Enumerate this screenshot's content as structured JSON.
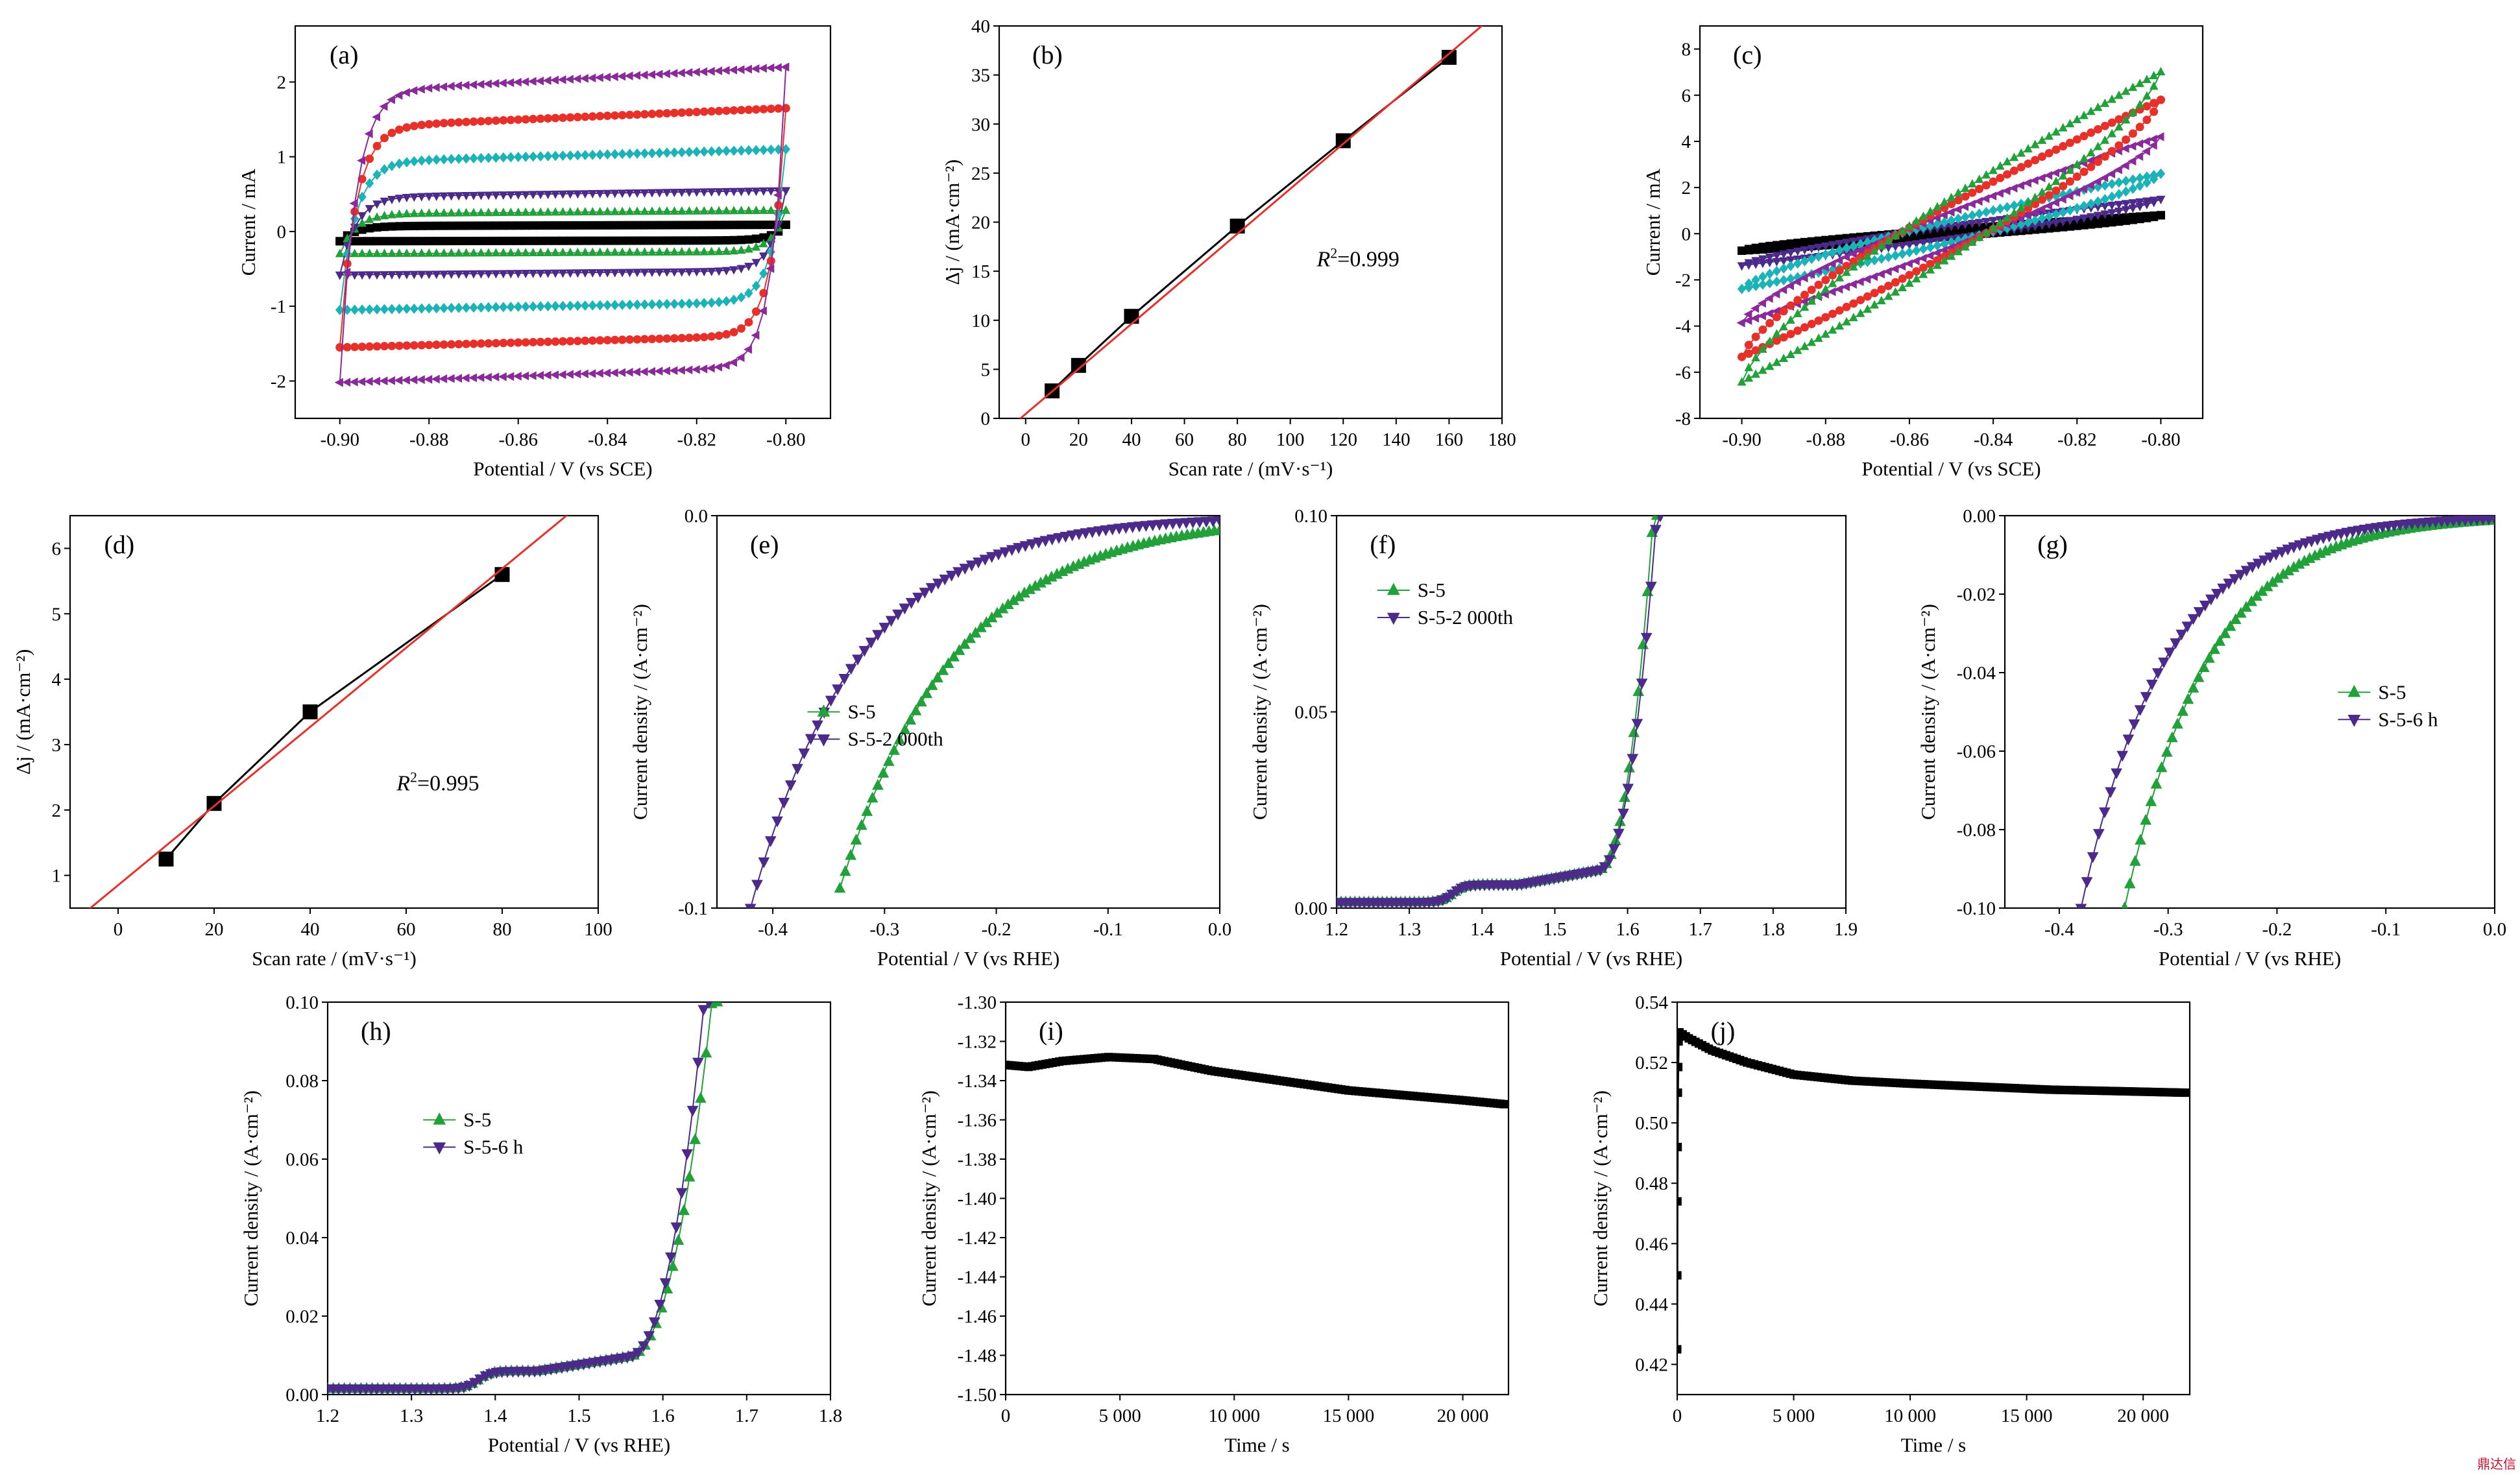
{
  "watermark": "鼎达信",
  "chart_data": [
    {
      "id": "a",
      "label": "(a)",
      "type": "line",
      "xlabel": "Potential / V (vs SCE)",
      "ylabel": "Current / mA",
      "xlim": [
        -0.91,
        -0.79
      ],
      "ylim": [
        -2.5,
        2.75
      ],
      "xticks": [
        -0.9,
        -0.88,
        -0.86,
        -0.84,
        -0.82,
        -0.8
      ],
      "xtick_labels": [
        "-0.90",
        "-0.88",
        "-0.86",
        "-0.84",
        "-0.82",
        "-0.80"
      ],
      "yticks": [
        -2,
        -1,
        0,
        1,
        2
      ],
      "ytick_labels": [
        "-2",
        "-1",
        "0",
        "1",
        "2"
      ],
      "series": [
        {
          "color": "#000000",
          "marker": "square",
          "shape": "cv",
          "x_range": [
            -0.9,
            -0.8
          ],
          "upper": 0.09,
          "lower": -0.13
        },
        {
          "color": "#22a13a",
          "marker": "triangle-up",
          "shape": "cv",
          "x_range": [
            -0.9,
            -0.8
          ],
          "upper": 0.28,
          "lower": -0.3
        },
        {
          "color": "#4b2a8a",
          "marker": "triangle-down",
          "shape": "cv",
          "x_range": [
            -0.9,
            -0.8
          ],
          "upper": 0.55,
          "lower": -0.58
        },
        {
          "color": "#1cb3b8",
          "marker": "diamond",
          "shape": "cv",
          "x_range": [
            -0.9,
            -0.8
          ],
          "upper": 1.1,
          "lower": -1.05
        },
        {
          "color": "#e8302a",
          "marker": "circle",
          "shape": "cv",
          "x_range": [
            -0.9,
            -0.8
          ],
          "upper": 1.65,
          "lower": -1.55
        },
        {
          "color": "#8a2a9a",
          "marker": "triangle-left",
          "shape": "cv",
          "x_range": [
            -0.9,
            -0.8
          ],
          "upper": 2.2,
          "lower": -2.02
        }
      ]
    },
    {
      "id": "b",
      "label": "(b)",
      "type": "scatter",
      "xlabel": "Scan rate / (mV·s⁻¹)",
      "ylabel": "Δj / (mA·cm⁻²)",
      "xlim": [
        -10,
        180
      ],
      "ylim": [
        0,
        40
      ],
      "xticks": [
        0,
        20,
        40,
        60,
        80,
        100,
        120,
        140,
        160,
        180
      ],
      "xtick_labels": [
        "0",
        "20",
        "40",
        "60",
        "80",
        "100",
        "120",
        "140",
        "160",
        "180"
      ],
      "yticks": [
        0,
        5,
        10,
        15,
        20,
        25,
        30,
        35,
        40
      ],
      "ytick_labels": [
        "0",
        "5",
        "10",
        "15",
        "20",
        "25",
        "30",
        "35",
        "40"
      ],
      "annotation": {
        "r": "R",
        "sup": "2",
        "rest": "=0.999",
        "x": 110,
        "y": 15.5
      },
      "series": [
        {
          "color": "#000000",
          "marker": "square",
          "connect": true,
          "x": [
            10,
            20,
            40,
            80,
            120,
            160
          ],
          "y": [
            2.8,
            5.4,
            10.4,
            19.6,
            28.3,
            36.8
          ]
        },
        {
          "color": "#e8302a",
          "type": "fit",
          "slope": 0.2295,
          "intercept": 0.45
        }
      ]
    },
    {
      "id": "c",
      "label": "(c)",
      "type": "line",
      "xlabel": "Potential / V (vs SCE)",
      "ylabel": "Current / mA",
      "xlim": [
        -0.91,
        -0.79
      ],
      "ylim": [
        -8,
        9
      ],
      "xticks": [
        -0.9,
        -0.88,
        -0.86,
        -0.84,
        -0.82,
        -0.8
      ],
      "xtick_labels": [
        "-0.90",
        "-0.88",
        "-0.86",
        "-0.84",
        "-0.82",
        "-0.80"
      ],
      "yticks": [
        -8,
        -6,
        -4,
        -2,
        0,
        2,
        4,
        6,
        8
      ],
      "ytick_labels": [
        "-8",
        "-6",
        "-4",
        "-2",
        "0",
        "2",
        "4",
        "6",
        "8"
      ],
      "series": [
        {
          "color": "#000000",
          "marker": "square",
          "shape": "cvres",
          "x_range": [
            -0.9,
            -0.8
          ],
          "amp": 0.8
        },
        {
          "color": "#4b2a8a",
          "marker": "triangle-down",
          "shape": "cvres",
          "x_range": [
            -0.9,
            -0.8
          ],
          "amp": 1.5
        },
        {
          "color": "#1cb3b8",
          "marker": "diamond",
          "shape": "cvres",
          "x_range": [
            -0.9,
            -0.8
          ],
          "amp": 2.6
        },
        {
          "color": "#8a2a9a",
          "marker": "triangle-left",
          "shape": "cvres",
          "x_range": [
            -0.9,
            -0.8
          ],
          "amp": 4.2
        },
        {
          "color": "#e8302a",
          "marker": "circle",
          "shape": "cvres",
          "x_range": [
            -0.9,
            -0.8
          ],
          "amp": 5.8
        },
        {
          "color": "#22a13a",
          "marker": "triangle-up",
          "shape": "cvres",
          "x_range": [
            -0.9,
            -0.8
          ],
          "amp": 7.0
        }
      ]
    },
    {
      "id": "d",
      "label": "(d)",
      "type": "scatter",
      "xlabel": "Scan rate / (mV·s⁻¹)",
      "ylabel": "Δj / (mA·cm⁻²)",
      "xlim": [
        -10,
        100
      ],
      "ylim": [
        0.5,
        6.5
      ],
      "xticks": [
        0,
        20,
        40,
        60,
        80,
        100
      ],
      "xtick_labels": [
        "0",
        "20",
        "40",
        "60",
        "80",
        "100"
      ],
      "yticks": [
        1,
        2,
        3,
        4,
        5,
        6
      ],
      "ytick_labels": [
        "1",
        "2",
        "3",
        "4",
        "5",
        "6"
      ],
      "annotation": {
        "r": "R",
        "sup": "2",
        "rest": "=0.995",
        "x": 58,
        "y": 2.3
      },
      "series": [
        {
          "color": "#000000",
          "marker": "square",
          "connect": true,
          "x": [
            10,
            20,
            40,
            80
          ],
          "y": [
            1.25,
            2.1,
            3.5,
            5.6
          ]
        },
        {
          "color": "#e8302a",
          "type": "fit",
          "slope": 0.0605,
          "intercept": 0.85
        }
      ]
    },
    {
      "id": "e",
      "label": "(e)",
      "type": "scatter",
      "xlabel": "Potential / V (vs RHE)",
      "ylabel": "Current density / (A·cm⁻²)",
      "xlim": [
        -0.45,
        0.0
      ],
      "ylim": [
        -0.1,
        0.0
      ],
      "xticks": [
        -0.4,
        -0.3,
        -0.2,
        -0.1,
        0.0
      ],
      "xtick_labels": [
        "-0.4",
        "-0.3",
        "-0.2",
        "-0.1",
        "0.0"
      ],
      "yticks": [
        -0.1,
        0.0
      ],
      "ytick_labels": [
        "-0.1",
        "0.0"
      ],
      "legend": {
        "position": "center-left"
      },
      "series": [
        {
          "name": "S-5",
          "color": "#22a13a",
          "marker": "triangle-up",
          "shape": "exp_neg",
          "x_range": [
            -0.34,
            0.0
          ],
          "onset": -0.34,
          "end": -0.095,
          "k": 9.5
        },
        {
          "name": "S-5-2 000th",
          "color": "#4b2a8a",
          "marker": "triangle-down",
          "shape": "exp_neg",
          "x_range": [
            -0.42,
            0.0
          ],
          "onset": -0.42,
          "end": -0.1,
          "k": 10.5
        }
      ]
    },
    {
      "id": "f",
      "label": "(f)",
      "type": "scatter",
      "xlabel": "Potential / V (vs RHE)",
      "ylabel": "Current density / (A·cm⁻²)",
      "xlim": [
        1.2,
        1.9
      ],
      "ylim": [
        0.0,
        0.1
      ],
      "xticks": [
        1.2,
        1.3,
        1.4,
        1.5,
        1.6,
        1.7,
        1.8,
        1.9
      ],
      "xtick_labels": [
        "1.2",
        "1.3",
        "1.4",
        "1.5",
        "1.6",
        "1.7",
        "1.8",
        "1.9"
      ],
      "yticks": [
        0.0,
        0.05,
        0.1
      ],
      "ytick_labels": [
        "0.00",
        "0.05",
        "0.10"
      ],
      "legend": {
        "position": "top-left"
      },
      "series": [
        {
          "name": "S-5",
          "color": "#22a13a",
          "marker": "triangle-up",
          "shape": "oer",
          "x_range": [
            1.2,
            1.64
          ],
          "x_end": 1.64,
          "bump": 1.36
        },
        {
          "name": "S-5-2 000th",
          "color": "#4b2a8a",
          "marker": "triangle-down",
          "shape": "oer",
          "x_range": [
            1.2,
            1.645
          ],
          "x_end": 1.645,
          "bump": 1.36
        }
      ]
    },
    {
      "id": "g",
      "label": "(g)",
      "type": "scatter",
      "xlabel": "Potential / V (vs RHE)",
      "ylabel": "Current density / (A·cm⁻²)",
      "xlim": [
        -0.45,
        0.0
      ],
      "ylim": [
        -0.1,
        0.0
      ],
      "xticks": [
        -0.4,
        -0.3,
        -0.2,
        -0.1,
        0.0
      ],
      "xtick_labels": [
        "-0.4",
        "-0.3",
        "-0.2",
        "-0.1",
        "0.0"
      ],
      "yticks": [
        -0.1,
        -0.08,
        -0.06,
        -0.04,
        -0.02,
        0.0
      ],
      "ytick_labels": [
        "-0.10",
        "-0.08",
        "-0.06",
        "-0.04",
        "-0.02",
        "0.00"
      ],
      "legend": {
        "position": "center-right"
      },
      "series": [
        {
          "name": "S-5",
          "color": "#22a13a",
          "marker": "triangle-up",
          "shape": "exp_neg",
          "x_range": [
            -0.34,
            0.0
          ],
          "onset": -0.34,
          "end": -0.1,
          "k": 13
        },
        {
          "name": "S-5-6 h",
          "color": "#4b2a8a",
          "marker": "triangle-down",
          "shape": "exp_neg",
          "x_range": [
            -0.38,
            0.0
          ],
          "onset": -0.38,
          "end": -0.1,
          "k": 13
        }
      ]
    },
    {
      "id": "h",
      "label": "(h)",
      "type": "scatter",
      "xlabel": "Potential / V (vs RHE)",
      "ylabel": "Current density / (A·cm⁻²)",
      "xlim": [
        1.2,
        1.8
      ],
      "ylim": [
        0.0,
        0.1
      ],
      "xticks": [
        1.2,
        1.3,
        1.4,
        1.5,
        1.6,
        1.7,
        1.8
      ],
      "xtick_labels": [
        "1.2",
        "1.3",
        "1.4",
        "1.5",
        "1.6",
        "1.7",
        "1.8"
      ],
      "yticks": [
        0.0,
        0.02,
        0.04,
        0.06,
        0.08,
        0.1
      ],
      "ytick_labels": [
        "0.00",
        "0.02",
        "0.04",
        "0.06",
        "0.08",
        "0.10"
      ],
      "legend": {
        "position": "top-left"
      },
      "series": [
        {
          "name": "S-5",
          "color": "#22a13a",
          "marker": "triangle-up",
          "shape": "oer",
          "x_range": [
            1.2,
            1.665
          ],
          "x_end": 1.665,
          "bump": 1.38
        },
        {
          "name": "S-5-6 h",
          "color": "#4b2a8a",
          "marker": "triangle-down",
          "shape": "oer",
          "x_range": [
            1.2,
            1.655
          ],
          "x_end": 1.655,
          "bump": 1.38
        }
      ]
    },
    {
      "id": "i",
      "label": "(i)",
      "type": "line",
      "xlabel": "Time / s",
      "ylabel": "Current density / (A·cm⁻²)",
      "xlim": [
        0,
        22000
      ],
      "ylim": [
        -1.5,
        -1.3
      ],
      "xticks": [
        0,
        5000,
        10000,
        15000,
        20000
      ],
      "xtick_labels": [
        "0",
        "5 000",
        "10 000",
        "15 000",
        "20 000"
      ],
      "yticks": [
        -1.5,
        -1.48,
        -1.46,
        -1.44,
        -1.42,
        -1.4,
        -1.38,
        -1.36,
        -1.34,
        -1.32,
        -1.3
      ],
      "ytick_labels": [
        "-1.50",
        "-1.48",
        "-1.46",
        "-1.44",
        "-1.42",
        "-1.40",
        "-1.38",
        "-1.36",
        "-1.34",
        "-1.32",
        "-1.30"
      ],
      "series": [
        {
          "color": "#000000",
          "marker": "square",
          "x": [
            0,
            1000,
            2500,
            4500,
            6500,
            9000,
            12000,
            15000,
            18000,
            20000,
            21800
          ],
          "y": [
            -1.332,
            -1.333,
            -1.33,
            -1.328,
            -1.329,
            -1.335,
            -1.34,
            -1.345,
            -1.348,
            -1.35,
            -1.352
          ]
        }
      ]
    },
    {
      "id": "j",
      "label": "(j)",
      "type": "line",
      "xlabel": "Time / s",
      "ylabel": "Current density / (A·cm⁻²)",
      "xlim": [
        0,
        22000
      ],
      "ylim": [
        0.41,
        0.54
      ],
      "xticks": [
        0,
        5000,
        10000,
        15000,
        20000
      ],
      "xtick_labels": [
        "0",
        "5 000",
        "10 000",
        "15 000",
        "20 000"
      ],
      "yticks": [
        0.42,
        0.44,
        0.46,
        0.48,
        0.5,
        0.52,
        0.54
      ],
      "ytick_labels": [
        "0.42",
        "0.44",
        "0.46",
        "0.48",
        "0.50",
        "0.52",
        "0.54"
      ],
      "series": [
        {
          "color": "#000000",
          "marker": "square",
          "x": [
            0,
            10,
            30,
            60,
            100,
            500,
            1500,
            3000,
            5000,
            7500,
            10000,
            13000,
            16000,
            19000,
            21800
          ],
          "y": [
            0.425,
            0.474,
            0.51,
            0.527,
            0.53,
            0.528,
            0.524,
            0.52,
            0.516,
            0.514,
            0.513,
            0.512,
            0.511,
            0.5105,
            0.51
          ]
        }
      ]
    }
  ]
}
